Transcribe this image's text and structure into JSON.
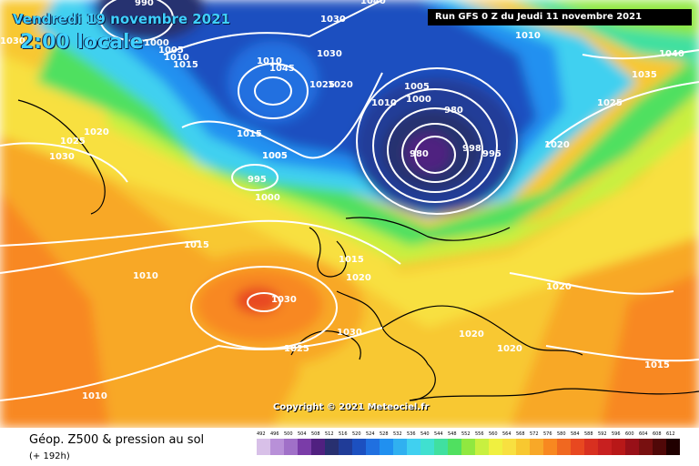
{
  "header": {
    "date": "Vendredi 19 novembre 2021",
    "local_time": "2:00 locale",
    "run": "Run GFS 0 Z du Jeudi 11 novembre 2021"
  },
  "copyright": "Copyright © 2021 Meteociel.fr",
  "footer": {
    "title": "Géop. Z500 & pression au sol",
    "subtitle": "(+ 192h)"
  },
  "legend": {
    "values": [
      "492",
      "496",
      "500",
      "504",
      "508",
      "512",
      "516",
      "520",
      "524",
      "528",
      "532",
      "536",
      "540",
      "544",
      "548",
      "552",
      "556",
      "560",
      "564",
      "568",
      "572",
      "576",
      "580",
      "584",
      "588",
      "592",
      "596",
      "600",
      "604",
      "608",
      "612"
    ],
    "colors": [
      "#d8c0e8",
      "#b890d8",
      "#a070c8",
      "#7a3ca8",
      "#502080",
      "#283070",
      "#203c98",
      "#1c50c0",
      "#2070e0",
      "#2090f0",
      "#30b0f0",
      "#40d0f0",
      "#40e0d0",
      "#40e0a0",
      "#50e060",
      "#90e840",
      "#c8f040",
      "#f0f040",
      "#f8e040",
      "#f8c830",
      "#f8a828",
      "#f88820",
      "#f06820",
      "#e84820",
      "#d83020",
      "#c82020",
      "#b81818",
      "#981018",
      "#781010",
      "#500808",
      "#200000"
    ]
  },
  "isobars": [
    "990",
    "1000",
    "1005",
    "1010",
    "1015",
    "1030",
    "1030",
    "1010",
    "1025",
    "1020",
    "1005",
    "1040",
    "1045",
    "1030",
    "1010",
    "1025",
    "1020",
    "1005",
    "1000",
    "980",
    "980",
    "995",
    "998",
    "1020",
    "1015",
    "1005",
    "995",
    "1000",
    "1010",
    "1015",
    "1015",
    "1020",
    "1020",
    "1030",
    "1025",
    "1030",
    "1010",
    "1020",
    "1020",
    "1015",
    "1010",
    "1035",
    "1040",
    "1030",
    "1025"
  ],
  "icons": {
    "map": "weather-map"
  },
  "colors": {
    "title_cyan": "#3fd0ff",
    "isobar": "#ffffff"
  }
}
